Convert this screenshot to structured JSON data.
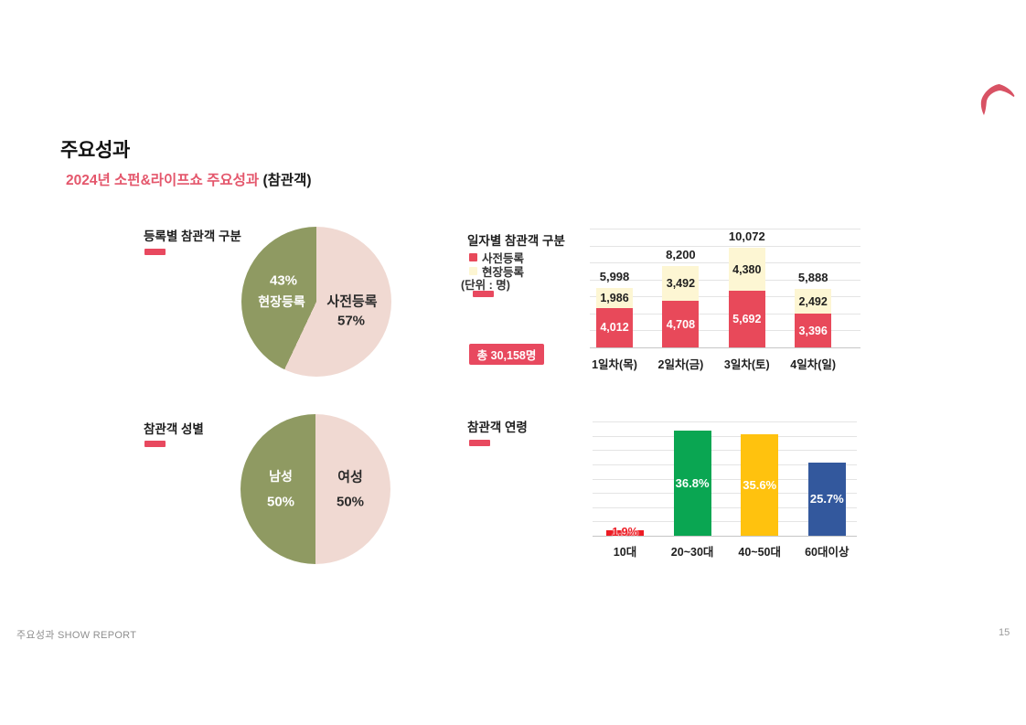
{
  "page": {
    "title": "주요성과",
    "subtitle_accent": "2024년 소펀&라이프쇼 주요성과",
    "subtitle_suffix": " (참관객)",
    "footer": "주요성과 SHOW REPORT",
    "page_number": "15"
  },
  "colors": {
    "accent_red": "#e8495f",
    "subtitle_pink": "#e4576c",
    "pie_green": "#8f9a62",
    "pie_pink": "#f0d9d2",
    "bar_red": "#e8495a",
    "bar_cream": "#fdf6d3",
    "age_red": "#ed1c24",
    "age_green": "#0aa652",
    "age_yellow": "#ffc20e",
    "age_blue": "#33589d",
    "logo_red": "#d85264"
  },
  "chart_data": [
    {
      "type": "pie",
      "title": "등록별 참관객 구분",
      "legend_position": "labels-inside",
      "slices": [
        {
          "label": "사전등록",
          "value_pct": 57,
          "pct_label": "57%",
          "color": "#f0d9d2"
        },
        {
          "label": "현장등록",
          "value_pct": 43,
          "pct_label": "43%",
          "color": "#8f9a62"
        }
      ]
    },
    {
      "type": "bar",
      "subtype": "stacked",
      "title": "일자별 참관객 구분",
      "unit": "(단위 : 명)",
      "total_label": "총 30,158명",
      "total_value": 30158,
      "categories": [
        "1일차(목)",
        "2일차(금)",
        "3일차(토)",
        "4일차(일)"
      ],
      "series": [
        {
          "name": "사전등록",
          "color": "#e8495a",
          "values": [
            4012,
            4708,
            5692,
            3396
          ]
        },
        {
          "name": "현장등록",
          "color": "#fdf6d3",
          "values": [
            1986,
            3492,
            4380,
            2492
          ]
        }
      ],
      "totals": [
        5998,
        8200,
        10072,
        5888
      ],
      "ylim": [
        0,
        12000
      ],
      "grid": true,
      "legend_position": "top-left"
    },
    {
      "type": "pie",
      "title": "참관객 성별",
      "legend_position": "labels-inside",
      "slices": [
        {
          "label": "여성",
          "value_pct": 50,
          "pct_label": "50%",
          "color": "#f0d9d2"
        },
        {
          "label": "남성",
          "value_pct": 50,
          "pct_label": "50%",
          "color": "#8f9a62"
        }
      ]
    },
    {
      "type": "bar",
      "title": "참관객 연령",
      "categories": [
        "10대",
        "20~30대",
        "40~50대",
        "60대이상"
      ],
      "values": [
        1.9,
        36.8,
        35.6,
        25.7
      ],
      "colors": [
        "#ed1c24",
        "#0aa652",
        "#ffc20e",
        "#33589d"
      ],
      "ylim": [
        0,
        40
      ],
      "grid": true,
      "ylabel": "",
      "xlabel": ""
    }
  ]
}
